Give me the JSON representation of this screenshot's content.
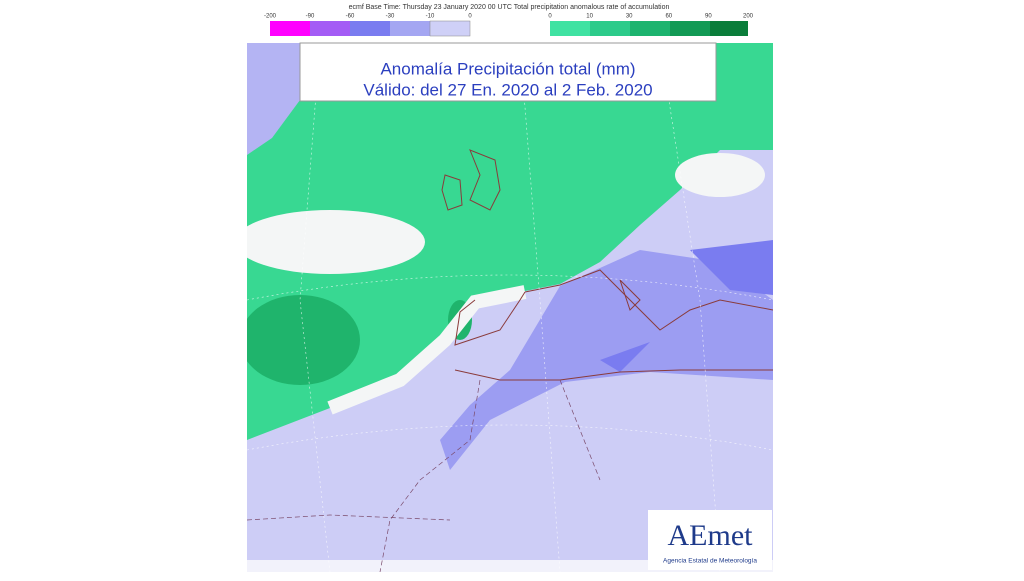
{
  "header": {
    "text": "ecmf  Base Time: Thursday 23 January 2020 00 UTC  Total precipitation anomalous rate of accumulation"
  },
  "legend": {
    "negative": [
      -200,
      -90,
      -60,
      -30,
      -10,
      0
    ],
    "positive": [
      0,
      10,
      30,
      60,
      90,
      200
    ]
  },
  "title": {
    "line1": "Anomalía Precipitación total (mm)",
    "line2": "Válido: del 27 En. 2020 al 2 Feb. 2020"
  },
  "logo": {
    "name": "AEmet",
    "subtitle": "Agencia Estatal de Meteorología"
  }
}
